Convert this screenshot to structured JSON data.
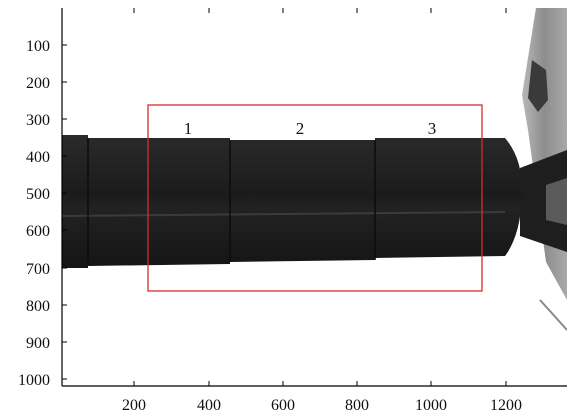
{
  "x_axis": {
    "ticks": [
      "200",
      "400",
      "600",
      "800",
      "1000",
      "1200"
    ]
  },
  "y_axis": {
    "ticks": [
      "100",
      "200",
      "300",
      "400",
      "500",
      "600",
      "700",
      "800",
      "900",
      "1000"
    ]
  },
  "region_labels": [
    "1",
    "2",
    "3"
  ],
  "colors": {
    "background": "#ffffff",
    "specimen": "#1c1c1c",
    "roi_box": "#d92b2b",
    "axis": "#000000"
  }
}
